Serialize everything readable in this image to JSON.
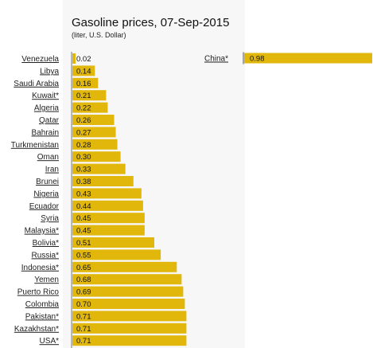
{
  "chart_data": {
    "type": "bar",
    "orientation": "horizontal",
    "title": "Gasoline prices, 07-Sep-2015",
    "subtitle": "(liter, U.S. Dollar)",
    "bar_color": "#e2b70b",
    "categories": [
      "Venezuela",
      "Libya",
      "Saudi Arabia",
      "Kuwait*",
      "Algeria",
      "Qatar",
      "Bahrain",
      "Turkmenistan",
      "Oman",
      "Iran",
      "Brunei",
      "Nigeria",
      "Ecuador",
      "Syria",
      "Malaysia*",
      "Bolivia*",
      "Russia*",
      "Indonesia*",
      "Yemen",
      "Puerto Rico",
      "Colombia",
      "Pakistan*",
      "Kazakhstan*",
      "USA*"
    ],
    "values": [
      0.02,
      0.14,
      0.16,
      0.21,
      0.22,
      0.26,
      0.27,
      0.28,
      0.3,
      0.33,
      0.38,
      0.43,
      0.44,
      0.45,
      0.45,
      0.51,
      0.55,
      0.65,
      0.68,
      0.69,
      0.7,
      0.71,
      0.71,
      0.71
    ],
    "value_labels": [
      "0.02",
      "0.14",
      "0.16",
      "0.21",
      "0.22",
      "0.26",
      "0.27",
      "0.28",
      "0.30",
      "0.33",
      "0.38",
      "0.43",
      "0.44",
      "0.45",
      "0.45",
      "0.51",
      "0.55",
      "0.65",
      "0.68",
      "0.69",
      "0.70",
      "0.71",
      "0.71",
      "0.71"
    ],
    "highlight": {
      "category": "China*",
      "value": 0.98,
      "value_label": "0.98"
    }
  }
}
